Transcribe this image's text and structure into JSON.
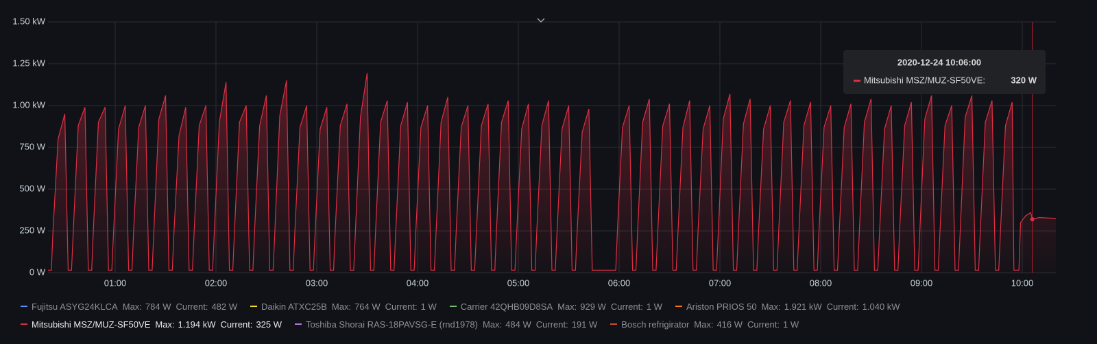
{
  "chart_data": {
    "type": "line",
    "x": [
      "00:20",
      "00:22",
      "00:23",
      "00:26",
      "00:30",
      "00:32",
      "00:34",
      "00:35",
      "00:38",
      "00:42",
      "00:44",
      "00:46",
      "00:47",
      "00:50",
      "00:54",
      "00:56",
      "00:58",
      "00:59",
      "01:02",
      "01:06",
      "01:08",
      "01:10",
      "01:11",
      "01:14",
      "01:18",
      "01:20",
      "01:22",
      "01:23",
      "01:26",
      "01:30",
      "01:32",
      "01:34",
      "01:35",
      "01:38",
      "01:42",
      "01:44",
      "01:46",
      "01:47",
      "01:50",
      "01:54",
      "01:56",
      "01:58",
      "01:59",
      "02:02",
      "02:06",
      "02:08",
      "02:10",
      "02:11",
      "02:14",
      "02:18",
      "02:20",
      "02:22",
      "02:23",
      "02:26",
      "02:30",
      "02:32",
      "02:34",
      "02:35",
      "02:38",
      "02:42",
      "02:44",
      "02:46",
      "02:47",
      "02:50",
      "02:54",
      "02:56",
      "02:58",
      "02:59",
      "03:02",
      "03:06",
      "03:08",
      "03:10",
      "03:11",
      "03:14",
      "03:18",
      "03:20",
      "03:22",
      "03:23",
      "03:26",
      "03:30",
      "03:32",
      "03:34",
      "03:35",
      "03:38",
      "03:42",
      "03:44",
      "03:46",
      "03:47",
      "03:50",
      "03:54",
      "03:56",
      "03:58",
      "03:59",
      "04:02",
      "04:06",
      "04:08",
      "04:10",
      "04:11",
      "04:14",
      "04:18",
      "04:20",
      "04:22",
      "04:23",
      "04:26",
      "04:30",
      "04:32",
      "04:34",
      "04:35",
      "04:38",
      "04:42",
      "04:44",
      "04:46",
      "04:47",
      "04:50",
      "04:54",
      "04:56",
      "04:58",
      "04:59",
      "05:02",
      "05:06",
      "05:08",
      "05:10",
      "05:11",
      "05:14",
      "05:18",
      "05:20",
      "05:22",
      "05:23",
      "05:26",
      "05:30",
      "05:32",
      "05:34",
      "05:35",
      "05:38",
      "05:42",
      "05:44",
      "05:46",
      "05:47",
      "05:50",
      "05:54",
      "05:56",
      "05:58",
      "05:59",
      "06:02",
      "06:06",
      "06:08",
      "06:10",
      "06:11",
      "06:14",
      "06:18",
      "06:20",
      "06:22",
      "06:23",
      "06:26",
      "06:30",
      "06:32",
      "06:34",
      "06:35",
      "06:38",
      "06:42",
      "06:44",
      "06:46",
      "06:47",
      "06:50",
      "06:54",
      "06:56",
      "06:58",
      "06:59",
      "07:02",
      "07:06",
      "07:08",
      "07:10",
      "07:11",
      "07:14",
      "07:18",
      "07:20",
      "07:22",
      "07:23",
      "07:26",
      "07:30",
      "07:32",
      "07:34",
      "07:35",
      "07:38",
      "07:42",
      "07:44",
      "07:46",
      "07:47",
      "07:50",
      "07:54",
      "07:56",
      "07:58",
      "07:59",
      "08:02",
      "08:06",
      "08:08",
      "08:10",
      "08:11",
      "08:14",
      "08:18",
      "08:20",
      "08:22",
      "08:23",
      "08:26",
      "08:30",
      "08:32",
      "08:34",
      "08:35",
      "08:38",
      "08:42",
      "08:44",
      "08:46",
      "08:47",
      "08:50",
      "08:54",
      "08:56",
      "08:58",
      "08:59",
      "09:02",
      "09:06",
      "09:08",
      "09:10",
      "09:11",
      "09:14",
      "09:18",
      "09:20",
      "09:22",
      "09:23",
      "09:26",
      "09:30",
      "09:32",
      "09:34",
      "09:35",
      "09:38",
      "09:42",
      "09:44",
      "09:46",
      "09:47",
      "09:50",
      "09:54",
      "09:55",
      "09:58",
      "09:59",
      "10:02",
      "10:05",
      "10:06",
      "10:10",
      "10:20"
    ],
    "series": [
      {
        "name": "Fujitsu ASYG24KLCA",
        "color": "#5794f2",
        "hidden": true,
        "max": {
          "value": 784,
          "label": "784 W"
        },
        "current": {
          "value": 482,
          "label": "482 W"
        }
      },
      {
        "name": "Daikin ATXC25B",
        "color": "#fade2a",
        "hidden": true,
        "max": {
          "value": 764,
          "label": "764 W"
        },
        "current": {
          "value": 1,
          "label": "1 W"
        }
      },
      {
        "name": "Carrier 42QHB09D8SA",
        "color": "#73bf69",
        "hidden": true,
        "max": {
          "value": 929,
          "label": "929 W"
        },
        "current": {
          "value": 1,
          "label": "1 W"
        }
      },
      {
        "name": "Ariston PRIOS 50",
        "color": "#ff780a",
        "hidden": true,
        "max": {
          "value": 1921,
          "label": "1.921 kW"
        },
        "current": {
          "value": 1040,
          "label": "1.040 kW"
        }
      },
      {
        "name": "Mitsubishi MSZ/MUZ-SF50VE",
        "color": "#e02f44",
        "hidden": false,
        "max": {
          "value": 1194,
          "label": "1.194 kW"
        },
        "current": {
          "value": 325,
          "label": "325 W"
        },
        "values": [
          15,
          15,
          250,
          800,
          950,
          15,
          15,
          240,
          880,
          990,
          15,
          15,
          250,
          900,
          990,
          15,
          15,
          240,
          860,
          1000,
          15,
          15,
          250,
          870,
          1000,
          15,
          15,
          240,
          920,
          1060,
          15,
          15,
          250,
          820,
          990,
          15,
          15,
          240,
          880,
          1000,
          15,
          15,
          250,
          900,
          1140,
          15,
          15,
          240,
          900,
          1000,
          15,
          15,
          250,
          880,
          1060,
          15,
          15,
          240,
          940,
          1150,
          15,
          15,
          250,
          870,
          1000,
          15,
          15,
          240,
          860,
          990,
          15,
          15,
          250,
          880,
          1010,
          15,
          15,
          240,
          930,
          1194,
          15,
          15,
          250,
          900,
          1030,
          15,
          15,
          240,
          880,
          1020,
          15,
          15,
          250,
          870,
          1000,
          15,
          15,
          240,
          900,
          1050,
          15,
          15,
          250,
          870,
          1000,
          15,
          15,
          240,
          880,
          1010,
          15,
          15,
          250,
          900,
          1030,
          15,
          15,
          240,
          860,
          1010,
          15,
          15,
          250,
          880,
          1030,
          15,
          15,
          240,
          860,
          1000,
          15,
          15,
          250,
          840,
          980,
          15,
          15,
          15,
          15,
          15,
          15,
          15,
          250,
          870,
          1000,
          15,
          15,
          240,
          900,
          1040,
          15,
          15,
          250,
          880,
          1010,
          15,
          15,
          240,
          870,
          1030,
          15,
          15,
          250,
          860,
          1000,
          15,
          15,
          240,
          920,
          1070,
          15,
          15,
          250,
          890,
          1040,
          15,
          15,
          240,
          860,
          1000,
          15,
          15,
          250,
          900,
          1030,
          15,
          15,
          240,
          880,
          1020,
          15,
          15,
          250,
          870,
          1000,
          15,
          15,
          240,
          870,
          1010,
          15,
          15,
          250,
          900,
          1040,
          15,
          15,
          240,
          860,
          1000,
          15,
          15,
          250,
          880,
          1020,
          15,
          15,
          240,
          920,
          1060,
          15,
          15,
          250,
          880,
          1000,
          15,
          15,
          240,
          930,
          1060,
          15,
          15,
          250,
          900,
          1030,
          15,
          15,
          240,
          880,
          1020,
          15,
          15,
          300,
          340,
          360,
          320,
          330,
          325
        ]
      },
      {
        "name": "Toshiba Shorai RAS-18PAVSG-E (rnd1978)",
        "color": "#b877d9",
        "hidden": true,
        "max": {
          "value": 484,
          "label": "484 W"
        },
        "current": {
          "value": 191,
          "label": "191 W"
        }
      },
      {
        "name": "Bosch refrigirator",
        "color": "#c4502c",
        "hidden": true,
        "max": {
          "value": 416,
          "label": "416 W"
        },
        "current": {
          "value": 1,
          "label": "1 W"
        }
      }
    ],
    "legend_labels": [
      "Max:",
      "Current:"
    ],
    "xlim": [
      "00:20",
      "10:20"
    ],
    "xticks": [
      "01:00",
      "02:00",
      "03:00",
      "04:00",
      "05:00",
      "06:00",
      "07:00",
      "08:00",
      "09:00",
      "10:00"
    ],
    "ylim": [
      0,
      1500
    ],
    "yticks": [
      {
        "value": 0,
        "label": "0 W"
      },
      {
        "value": 250,
        "label": "250 W"
      },
      {
        "value": 500,
        "label": "500 W"
      },
      {
        "value": 750,
        "label": "750 W"
      },
      {
        "value": 1000,
        "label": "1.00 kW"
      },
      {
        "value": 1250,
        "label": "1.25 kW"
      },
      {
        "value": 1500,
        "label": "1.50 kW"
      }
    ],
    "grid": true,
    "tooltip": {
      "title": "2020-12-24 10:06:00",
      "series": "Mitsubishi MSZ/MUZ-SF50VE:",
      "value": {
        "value": 320,
        "label": "320 W"
      }
    }
  }
}
